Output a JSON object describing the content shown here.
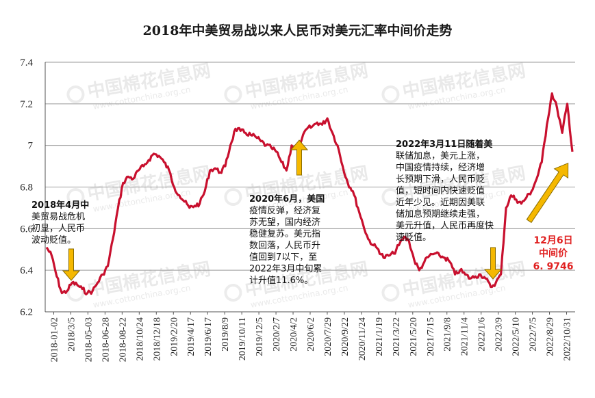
{
  "chart_data": {
    "type": "line",
    "title": "2018年中美贸易战以来人民币对美元汇率中间价走势",
    "ylim": [
      6.2,
      7.4
    ],
    "y_ticks": [
      "6.2",
      "6.4",
      "6.6",
      "6.8",
      "7",
      "7.2",
      "7.4"
    ],
    "grid": true,
    "x_ticks": [
      "2018-01-02",
      "2018/3/5",
      "2018-05-03",
      "2018-06-28",
      "2018-08-22",
      "2018/10/24",
      "2018/12/18",
      "2019/2/20",
      "2019/4/17",
      "2019/6/17",
      "2019/8/9",
      "2019/10/11",
      "2019/12/5",
      "2020/2/7",
      "2020/4/2",
      "2020/6/2",
      "2020/7/29",
      "2020/9/22",
      "2020/11/24",
      "2021/1/19",
      "2021/3/22",
      "2021/5/20",
      "2021/7/15",
      "2021/9/8",
      "2021/11/4",
      "2022/1/6",
      "2022/3/9",
      "2022/5/10",
      "2022/7/5",
      "2022/8/29",
      "2022/10/31"
    ],
    "series": [
      {
        "color": "#c8102e",
        "x_start": "2018-01-02",
        "x_end": "2022-12-06",
        "values": [
          6.51,
          6.47,
          6.37,
          6.29,
          6.3,
          6.34,
          6.33,
          6.31,
          6.29,
          6.3,
          6.34,
          6.38,
          6.42,
          6.55,
          6.7,
          6.82,
          6.85,
          6.84,
          6.88,
          6.9,
          6.93,
          6.96,
          6.95,
          6.92,
          6.88,
          6.8,
          6.76,
          6.73,
          6.7,
          6.71,
          6.72,
          6.78,
          6.88,
          6.89,
          6.87,
          6.9,
          7.0,
          7.08,
          7.07,
          7.06,
          7.05,
          7.04,
          7.02,
          7.0,
          6.99,
          6.97,
          6.92,
          6.88,
          7.0,
          6.99,
          7.03,
          7.08,
          7.09,
          7.11,
          7.1,
          7.13,
          7.06,
          7.0,
          6.9,
          6.82,
          6.78,
          6.7,
          6.62,
          6.55,
          6.52,
          6.5,
          6.46,
          6.47,
          6.48,
          6.52,
          6.56,
          6.54,
          6.45,
          6.4,
          6.44,
          6.47,
          6.48,
          6.47,
          6.46,
          6.44,
          6.38,
          6.4,
          6.38,
          6.36,
          6.37,
          6.38,
          6.36,
          6.32,
          6.34,
          6.38,
          6.7,
          6.76,
          6.74,
          6.72,
          6.75,
          6.78,
          6.84,
          6.92,
          7.1,
          7.25,
          7.18,
          7.06,
          7.2,
          6.97
        ]
      }
    ],
    "annotations": [
      {
        "id": "2018-04",
        "lines": [
          "2018年4月中",
          "美贸易战危机",
          "初显，人民币",
          "波动贬值。"
        ]
      },
      {
        "id": "2020-06",
        "lines": [
          "2020年6月，美国",
          "疫情反弹，经济复",
          "苏无望，国内经济",
          "稳健复苏。美元指",
          "数回落，人民币升",
          "值回到7以下，至",
          "2022年3月中旬累",
          "计升值11.6%。"
        ]
      },
      {
        "id": "2022-03",
        "lines": [
          "2022年3月11日随着美",
          "联储加息，美元上涨，",
          "中国疫情持续，经济增",
          "长预期下滑，人民币贬",
          "值，短时间内快速贬值",
          "近年少见。近期因美联",
          "储加息预期继续走强，",
          "美元升值，人民币再度快",
          "速贬值。"
        ]
      },
      {
        "id": "2022-12-06",
        "lines": [
          "12月6日",
          "中间价",
          "6. 9746"
        ]
      }
    ],
    "watermark": {
      "text": "中国棉花信息网",
      "url": "www.cottonchina.org.cn"
    }
  }
}
